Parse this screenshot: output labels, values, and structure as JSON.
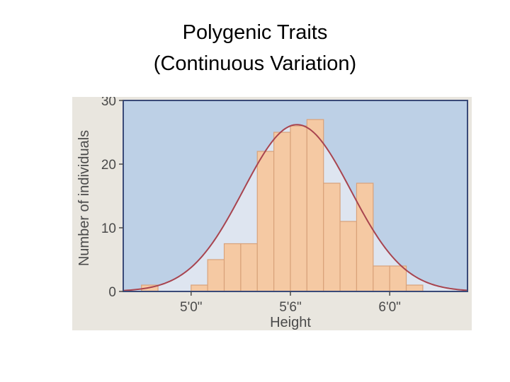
{
  "title": {
    "line1": "Polygenic Traits",
    "line2": "(Continuous Variation)"
  },
  "chart_data": {
    "type": "bar",
    "title": "",
    "xlabel": "Height",
    "ylabel": "Number of individuals",
    "ylim": [
      0,
      30
    ],
    "yticks": [
      0,
      10,
      20,
      30
    ],
    "xticks": [
      {
        "value": 60,
        "label": "5'0\""
      },
      {
        "value": 66,
        "label": "5'6\""
      },
      {
        "value": 72,
        "label": "6'0\""
      }
    ],
    "xlim": [
      55.9,
      76.7
    ],
    "bin_width": 1,
    "bins_start_inches": [
      57,
      58,
      59,
      60,
      61,
      62,
      63,
      64,
      65,
      66,
      67,
      68,
      69,
      70,
      71,
      72,
      73
    ],
    "values": [
      1,
      0,
      0,
      1,
      5,
      7.5,
      7.5,
      22,
      25,
      26,
      27,
      17,
      11,
      17,
      4,
      4,
      1
    ],
    "curve": {
      "type": "normal",
      "mean_inches": 66.4,
      "sd_inches": 3.25,
      "peak": 26.2
    },
    "grid": false,
    "colors": {
      "plot_background": "#bdd0e6",
      "bar_fill": "#f5c9a3",
      "bar_stroke": "#d9a27a",
      "curve": "#a8444f",
      "under_curve": "#dee5f0"
    }
  }
}
